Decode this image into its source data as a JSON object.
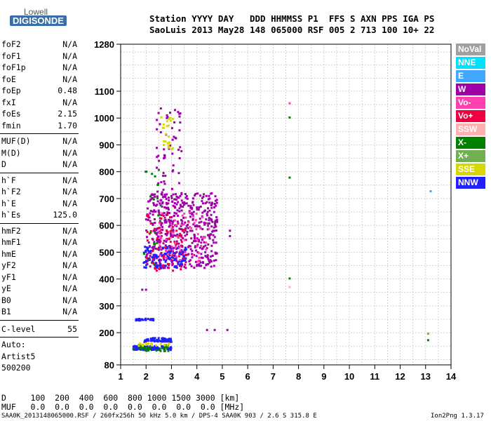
{
  "logo": {
    "line1": "Lowell",
    "line2": "DIGISONDE"
  },
  "header": {
    "line1": "Station YYYY DAY   DDD HHMMSS P1  FFS S AXN PPS IGA PS",
    "line2": "SaoLuis 2013 May28 148 065000 RSF 005 2 713 100 10+ 22"
  },
  "params_group1": [
    {
      "key": "foF2",
      "value": "N/A"
    },
    {
      "key": "foF1",
      "value": "N/A"
    },
    {
      "key": "foF1p",
      "value": "N/A"
    },
    {
      "key": "foE",
      "value": "N/A"
    },
    {
      "key": "foEp",
      "value": "0.48"
    },
    {
      "key": "fxI",
      "value": "N/A"
    },
    {
      "key": "foEs",
      "value": "2.15"
    },
    {
      "key": "fmin",
      "value": "1.70"
    }
  ],
  "params_group2": [
    {
      "key": "MUF(D)",
      "value": "N/A"
    },
    {
      "key": "M(D)",
      "value": "N/A"
    },
    {
      "key": "D",
      "value": "N/A"
    }
  ],
  "params_group3": [
    {
      "key": "h`F",
      "value": "N/A"
    },
    {
      "key": "h`F2",
      "value": "N/A"
    },
    {
      "key": "h`E",
      "value": "N/A"
    },
    {
      "key": "h`Es",
      "value": "125.0"
    }
  ],
  "params_group4": [
    {
      "key": "hmF2",
      "value": "N/A"
    },
    {
      "key": "hmF1",
      "value": "N/A"
    },
    {
      "key": "hmE",
      "value": "N/A"
    },
    {
      "key": "yF2",
      "value": "N/A"
    },
    {
      "key": "yF1",
      "value": "N/A"
    },
    {
      "key": "yE",
      "value": "N/A"
    },
    {
      "key": "B0",
      "value": "N/A"
    },
    {
      "key": "B1",
      "value": "N/A"
    }
  ],
  "clevel": {
    "key": "C-level",
    "value": "55"
  },
  "auto": [
    "Auto:",
    "Artist5",
    "500200"
  ],
  "footer": {
    "d_row": "D     100  200  400  600  800 1000 1500 3000 [km]",
    "muf_row": "MUF   0.0  0.0  0.0  0.0  0.0  0.0  0.0  0.0 [MHz]",
    "file_info": "SAA0K_2013148065000.RSF / 260fx256h 50 kHz 5.0 km / DPS-4 SAA0K 903 / 2.6 S 315.8 E",
    "version": "Ion2Png 1.3.17"
  },
  "legend": [
    {
      "label": "NoVal",
      "color": "#a0a0a0"
    },
    {
      "label": "NNE",
      "color": "#00e0ff"
    },
    {
      "label": "E",
      "color": "#40a8ff"
    },
    {
      "label": "W",
      "color": "#a000a8"
    },
    {
      "label": "Vo-",
      "color": "#ff40b0"
    },
    {
      "label": "Vo+",
      "color": "#f00040"
    },
    {
      "label": "SSW",
      "color": "#ffb0b0"
    },
    {
      "label": "X-",
      "color": "#008000"
    },
    {
      "label": "X+",
      "color": "#70b050"
    },
    {
      "label": "SSE",
      "color": "#d8d800"
    },
    {
      "label": "NNW",
      "color": "#2020ff"
    }
  ],
  "chart_data": {
    "type": "scatter",
    "x_ticks": [
      1,
      2,
      3,
      4,
      5,
      6,
      7,
      8,
      9,
      10,
      11,
      12,
      13,
      14
    ],
    "y_ticks": [
      80,
      200,
      300,
      400,
      500,
      600,
      700,
      800,
      900,
      1000,
      1100,
      1280
    ],
    "xlim": [
      1,
      14
    ],
    "ylim": [
      80,
      1280
    ],
    "grid": true,
    "clusters": [
      {
        "legend": "W",
        "x_range": [
          2.0,
          4.8
        ],
        "y_range": [
          440,
          720
        ],
        "count": 520
      },
      {
        "legend": "W",
        "x_range": [
          2.4,
          3.4
        ],
        "y_range": [
          720,
          1040
        ],
        "count": 60
      },
      {
        "legend": "NNW",
        "x_range": [
          1.9,
          3.6
        ],
        "y_range": [
          440,
          520
        ],
        "count": 120
      },
      {
        "legend": "Vo+",
        "x_range": [
          2.0,
          3.6
        ],
        "y_range": [
          430,
          640
        ],
        "count": 70
      },
      {
        "legend": "Vo-",
        "x_range": [
          2.5,
          4.5
        ],
        "y_range": [
          460,
          650
        ],
        "count": 60
      },
      {
        "legend": "SSE",
        "x_range": [
          2.6,
          3.1
        ],
        "y_range": [
          880,
          1010
        ],
        "count": 25
      },
      {
        "legend": "X-",
        "x_range": [
          1.9,
          2.6
        ],
        "y_range": [
          440,
          830
        ],
        "count": 20
      },
      {
        "legend": "NNW",
        "x_range": [
          1.6,
          2.3
        ],
        "y_range": [
          245,
          252
        ],
        "count": 30
      },
      {
        "legend": "NNW",
        "x_range": [
          1.9,
          3.0
        ],
        "y_range": [
          165,
          180
        ],
        "count": 60
      },
      {
        "legend": "NNW",
        "x_range": [
          1.5,
          3.0
        ],
        "y_range": [
          135,
          150
        ],
        "count": 110
      },
      {
        "legend": "X-",
        "x_range": [
          1.5,
          3.0
        ],
        "y_range": [
          130,
          155
        ],
        "count": 30
      },
      {
        "legend": "SSE",
        "x_range": [
          1.6,
          3.0
        ],
        "y_range": [
          150,
          160
        ],
        "count": 20
      }
    ],
    "points": [
      {
        "x": 1.85,
        "y": 360,
        "legend": "W"
      },
      {
        "x": 2.0,
        "y": 360,
        "legend": "W"
      },
      {
        "x": 4.4,
        "y": 210,
        "legend": "W"
      },
      {
        "x": 4.7,
        "y": 210,
        "legend": "W"
      },
      {
        "x": 5.2,
        "y": 210,
        "legend": "W"
      },
      {
        "x": 5.3,
        "y": 580,
        "legend": "W"
      },
      {
        "x": 5.3,
        "y": 560,
        "legend": "W"
      },
      {
        "x": 7.65,
        "y": 1055,
        "legend": "Vo-"
      },
      {
        "x": 7.65,
        "y": 1002,
        "legend": "X-"
      },
      {
        "x": 7.65,
        "y": 778,
        "legend": "X-"
      },
      {
        "x": 7.65,
        "y": 402,
        "legend": "X-"
      },
      {
        "x": 7.65,
        "y": 370,
        "legend": "SSW"
      },
      {
        "x": 13.2,
        "y": 727,
        "legend": "E"
      },
      {
        "x": 13.1,
        "y": 196,
        "legend": "X+"
      },
      {
        "x": 13.1,
        "y": 172,
        "legend": "X-"
      }
    ]
  }
}
